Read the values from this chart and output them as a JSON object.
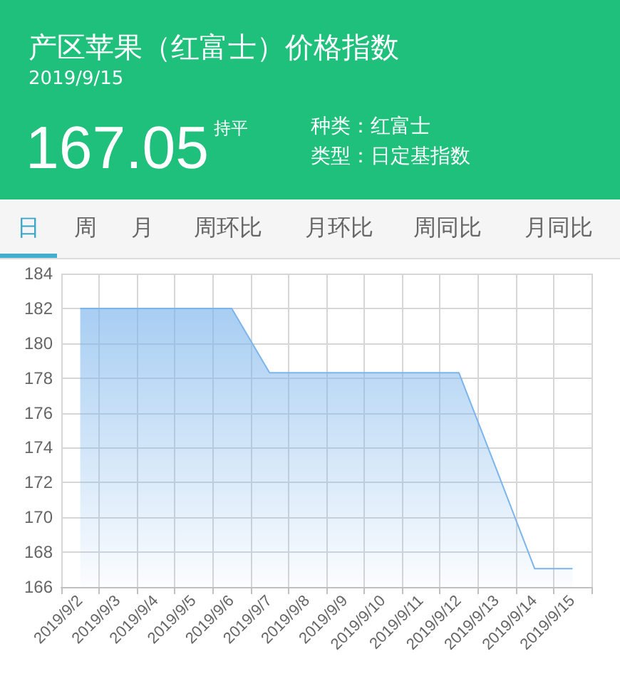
{
  "chart_data": {
    "type": "area",
    "title": "产区苹果（红富士）价格指数",
    "subtitle": "2019/9/15",
    "annotations": [
      "167.05",
      "持平",
      "种类：红富士",
      "类型：日定基指数",
      "日",
      "周",
      "月",
      "周环比",
      "月环比",
      "周同比",
      "月同比"
    ],
    "categories": [
      "2019/9/2",
      "2019/9/3",
      "2019/9/4",
      "2019/9/5",
      "2019/9/6",
      "2019/9/7",
      "2019/9/8",
      "2019/9/9",
      "2019/9/10",
      "2019/9/11",
      "2019/9/12",
      "2019/9/13",
      "2019/9/14",
      "2019/9/15"
    ],
    "values": [
      182,
      182,
      182,
      182,
      182,
      178.3,
      178.3,
      178.3,
      178.3,
      178.3,
      178.3,
      172.7,
      167.05,
      167.05
    ],
    "color": "#7cb5ec",
    "ylim": [
      166,
      184
    ],
    "yticks": [
      166,
      168,
      170,
      172,
      174,
      176,
      178,
      180,
      182,
      184
    ],
    "grid": true
  }
}
